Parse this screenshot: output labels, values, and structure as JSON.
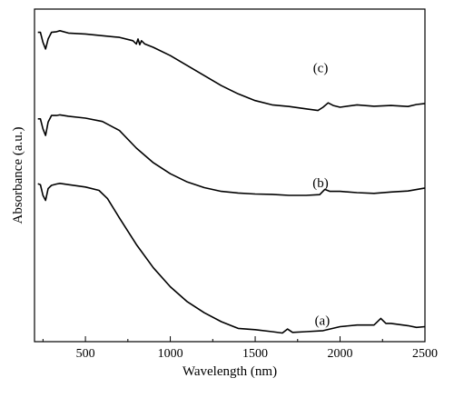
{
  "chart_data": {
    "type": "line",
    "xlabel": "Wavelength (nm)",
    "ylabel": "Absorbance (a.u.)",
    "xlim": [
      200,
      2500
    ],
    "ylim": [
      0,
      1
    ],
    "x_ticks": [
      500,
      1000,
      1500,
      2000,
      2500
    ],
    "y_tick_labels": "none",
    "grid": false,
    "legend": "none",
    "series": [
      {
        "name": "(c)",
        "label_at": [
          1885,
          0.81
        ],
        "points": [
          [
            220,
            0.93
          ],
          [
            235,
            0.93
          ],
          [
            250,
            0.9
          ],
          [
            265,
            0.88
          ],
          [
            280,
            0.91
          ],
          [
            300,
            0.93
          ],
          [
            330,
            0.932
          ],
          [
            350,
            0.935
          ],
          [
            400,
            0.928
          ],
          [
            500,
            0.925
          ],
          [
            600,
            0.92
          ],
          [
            700,
            0.915
          ],
          [
            780,
            0.905
          ],
          [
            800,
            0.895
          ],
          [
            810,
            0.91
          ],
          [
            820,
            0.893
          ],
          [
            830,
            0.905
          ],
          [
            850,
            0.895
          ],
          [
            900,
            0.885
          ],
          [
            1000,
            0.86
          ],
          [
            1100,
            0.83
          ],
          [
            1200,
            0.8
          ],
          [
            1300,
            0.77
          ],
          [
            1400,
            0.745
          ],
          [
            1500,
            0.725
          ],
          [
            1600,
            0.712
          ],
          [
            1700,
            0.707
          ],
          [
            1800,
            0.7
          ],
          [
            1870,
            0.695
          ],
          [
            1900,
            0.705
          ],
          [
            1930,
            0.718
          ],
          [
            1960,
            0.71
          ],
          [
            2000,
            0.705
          ],
          [
            2100,
            0.712
          ],
          [
            2200,
            0.708
          ],
          [
            2300,
            0.71
          ],
          [
            2400,
            0.707
          ],
          [
            2450,
            0.713
          ],
          [
            2500,
            0.716
          ]
        ]
      },
      {
        "name": "(b)",
        "label_at": [
          1885,
          0.465
        ],
        "points": [
          [
            220,
            0.67
          ],
          [
            235,
            0.67
          ],
          [
            250,
            0.64
          ],
          [
            265,
            0.62
          ],
          [
            280,
            0.66
          ],
          [
            300,
            0.68
          ],
          [
            330,
            0.68
          ],
          [
            350,
            0.682
          ],
          [
            400,
            0.678
          ],
          [
            500,
            0.672
          ],
          [
            600,
            0.662
          ],
          [
            700,
            0.635
          ],
          [
            800,
            0.582
          ],
          [
            900,
            0.538
          ],
          [
            1000,
            0.505
          ],
          [
            1100,
            0.48
          ],
          [
            1200,
            0.463
          ],
          [
            1300,
            0.452
          ],
          [
            1400,
            0.447
          ],
          [
            1500,
            0.444
          ],
          [
            1600,
            0.443
          ],
          [
            1700,
            0.44
          ],
          [
            1800,
            0.44
          ],
          [
            1880,
            0.442
          ],
          [
            1910,
            0.458
          ],
          [
            1940,
            0.452
          ],
          [
            2000,
            0.452
          ],
          [
            2100,
            0.448
          ],
          [
            2200,
            0.446
          ],
          [
            2300,
            0.45
          ],
          [
            2400,
            0.453
          ],
          [
            2500,
            0.462
          ]
        ]
      },
      {
        "name": "(a)",
        "label_at": [
          1895,
          0.05
        ],
        "points": [
          [
            220,
            0.475
          ],
          [
            235,
            0.472
          ],
          [
            250,
            0.44
          ],
          [
            265,
            0.425
          ],
          [
            280,
            0.46
          ],
          [
            300,
            0.47
          ],
          [
            330,
            0.474
          ],
          [
            350,
            0.476
          ],
          [
            400,
            0.472
          ],
          [
            500,
            0.465
          ],
          [
            580,
            0.455
          ],
          [
            630,
            0.43
          ],
          [
            700,
            0.372
          ],
          [
            800,
            0.292
          ],
          [
            900,
            0.222
          ],
          [
            1000,
            0.165
          ],
          [
            1100,
            0.12
          ],
          [
            1200,
            0.087
          ],
          [
            1300,
            0.06
          ],
          [
            1400,
            0.04
          ],
          [
            1500,
            0.036
          ],
          [
            1600,
            0.03
          ],
          [
            1660,
            0.026
          ],
          [
            1690,
            0.038
          ],
          [
            1720,
            0.028
          ],
          [
            1800,
            0.03
          ],
          [
            1900,
            0.033
          ],
          [
            2000,
            0.045
          ],
          [
            2100,
            0.05
          ],
          [
            2200,
            0.05
          ],
          [
            2240,
            0.07
          ],
          [
            2270,
            0.055
          ],
          [
            2300,
            0.055
          ],
          [
            2400,
            0.048
          ],
          [
            2450,
            0.043
          ],
          [
            2500,
            0.045
          ]
        ]
      }
    ]
  }
}
